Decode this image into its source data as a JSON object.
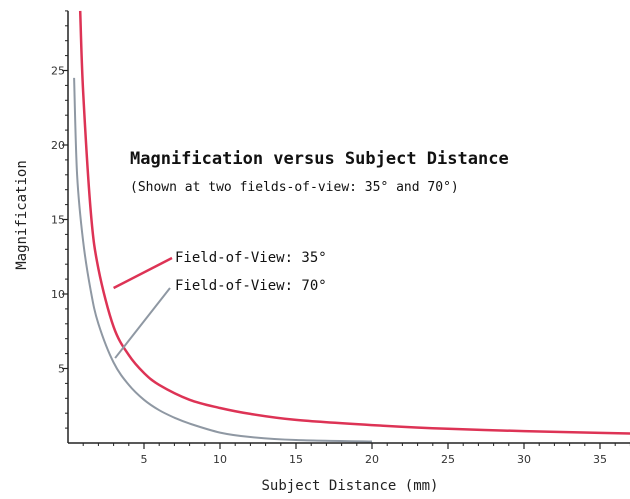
{
  "chart_data": {
    "type": "line",
    "title": "Magnification versus Subject Distance",
    "subtitle": "(Shown at two fields-of-view: 35° and 70°)",
    "xlabel": "Subject Distance (mm)",
    "ylabel": "Magnification",
    "xlim": [
      0,
      38
    ],
    "ylim": [
      0,
      29
    ],
    "x_ticks": [
      5,
      10,
      15,
      20,
      25,
      30,
      35
    ],
    "y_ticks": [
      5,
      10,
      15,
      20,
      25
    ],
    "grid": false,
    "legend": "none",
    "series": [
      {
        "name": "Field-of-View: 35°",
        "color": "#dd3355",
        "x": [
          0.8,
          1,
          1.5,
          2,
          3,
          4,
          5,
          6,
          8,
          10,
          12,
          15,
          20,
          25,
          30,
          35,
          38
        ],
        "y": [
          29,
          23.5,
          15.5,
          11.7,
          7.8,
          5.9,
          4.7,
          3.9,
          2.9,
          2.35,
          1.95,
          1.55,
          1.2,
          0.95,
          0.8,
          0.68,
          0.62
        ]
      },
      {
        "name": "Field-of-View: 70°",
        "color": "#8f98a3",
        "x": [
          0.4,
          0.6,
          1,
          1.5,
          2,
          3,
          4,
          5,
          6,
          7,
          8,
          10,
          12,
          15,
          20
        ],
        "y": [
          24.5,
          18,
          13.5,
          10.2,
          8,
          5.4,
          3.9,
          2.9,
          2.2,
          1.7,
          1.3,
          0.7,
          0.4,
          0.2,
          0.1
        ]
      }
    ],
    "annotations": [
      {
        "text": "Field-of-View: 35°",
        "series": 0,
        "point": [
          3,
          10.4
        ]
      },
      {
        "text": "Field-of-View: 70°",
        "series": 1,
        "point": [
          3.1,
          5.7
        ]
      }
    ]
  }
}
